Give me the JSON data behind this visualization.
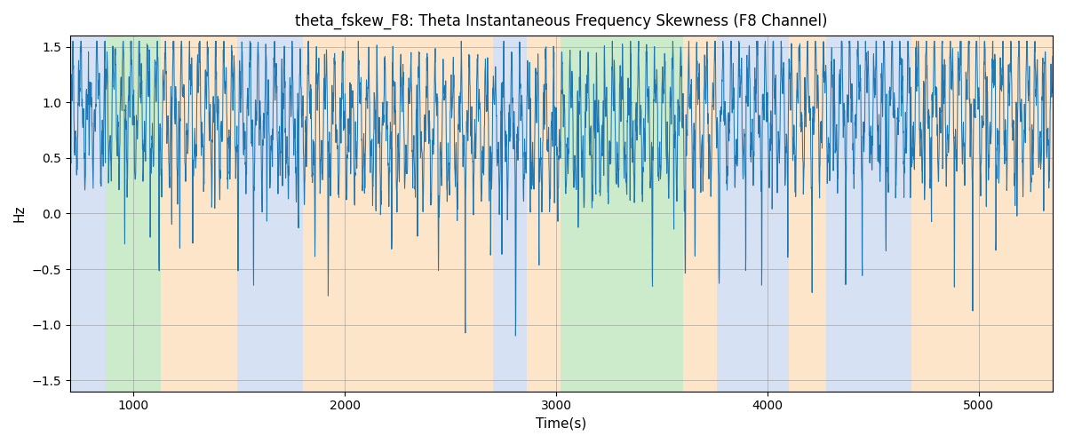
{
  "title": "theta_fskew_F8: Theta Instantaneous Frequency Skewness (F8 Channel)",
  "xlabel": "Time(s)",
  "ylabel": "Hz",
  "xlim": [
    700,
    5350
  ],
  "ylim": [
    -1.6,
    1.6
  ],
  "yticks": [
    -1.5,
    -1.0,
    -0.5,
    0.0,
    0.5,
    1.0,
    1.5
  ],
  "line_color": "#1f77b4",
  "bands": [
    {
      "xstart": 700,
      "xend": 870,
      "color": "#aec7e8",
      "alpha": 0.5
    },
    {
      "xstart": 870,
      "xend": 1130,
      "color": "#98d898",
      "alpha": 0.5
    },
    {
      "xstart": 1130,
      "xend": 1490,
      "color": "#fdd09e",
      "alpha": 0.55
    },
    {
      "xstart": 1490,
      "xend": 1800,
      "color": "#aec7e8",
      "alpha": 0.5
    },
    {
      "xstart": 1800,
      "xend": 2700,
      "color": "#fdd09e",
      "alpha": 0.55
    },
    {
      "xstart": 2700,
      "xend": 2860,
      "color": "#aec7e8",
      "alpha": 0.5
    },
    {
      "xstart": 2860,
      "xend": 3020,
      "color": "#fdd09e",
      "alpha": 0.55
    },
    {
      "xstart": 3020,
      "xend": 3600,
      "color": "#98d898",
      "alpha": 0.5
    },
    {
      "xstart": 3600,
      "xend": 3760,
      "color": "#fdd09e",
      "alpha": 0.55
    },
    {
      "xstart": 3760,
      "xend": 4100,
      "color": "#aec7e8",
      "alpha": 0.5
    },
    {
      "xstart": 4100,
      "xend": 4280,
      "color": "#fdd09e",
      "alpha": 0.55
    },
    {
      "xstart": 4280,
      "xend": 4680,
      "color": "#aec7e8",
      "alpha": 0.5
    },
    {
      "xstart": 4680,
      "xend": 5350,
      "color": "#fdd09e",
      "alpha": 0.55
    }
  ],
  "seed": 99,
  "n_points": 4600
}
